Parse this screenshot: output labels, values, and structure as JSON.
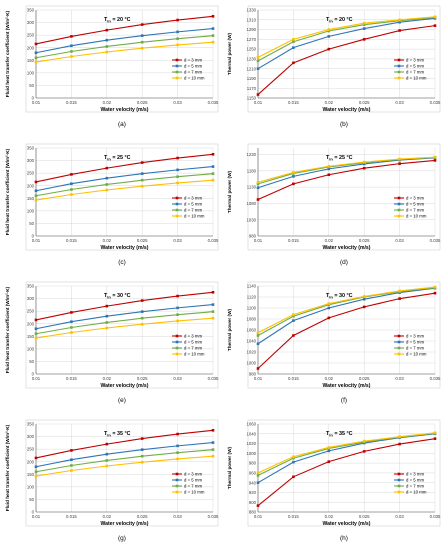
{
  "colors": {
    "d3": "#c00000",
    "d5": "#2e75b6",
    "d7": "#70ad47",
    "d10": "#ffc000",
    "grid": "#d9d9d9",
    "axis": "#595959"
  },
  "chart_data": [
    {
      "panel": "(a)",
      "type": "line",
      "annotation": "T_in = 20 °C",
      "xlabel": "Water velocity (m/s)",
      "ylabel": "Fluid heat transfer coefficient (W/m²·K)",
      "xlim": [
        0.01,
        0.035
      ],
      "ylim": [
        0,
        350
      ],
      "x_ticks": [
        "0.01",
        "0.015",
        "0.02",
        "0.025",
        "0.03",
        "0.035"
      ],
      "y_ticks": [
        "0",
        "50",
        "100",
        "150",
        "200",
        "250",
        "300",
        "350"
      ],
      "x": [
        0.01,
        0.015,
        0.02,
        0.025,
        0.03,
        0.035
      ],
      "series": [
        {
          "name": "d = 3 mm",
          "values": [
            215,
            245,
            270,
            292,
            310,
            325
          ]
        },
        {
          "name": "d = 5 mm",
          "values": [
            180,
            208,
            230,
            248,
            263,
            276
          ]
        },
        {
          "name": "d = 7 mm",
          "values": [
            160,
            185,
            205,
            222,
            236,
            248
          ]
        },
        {
          "name": "d = 10 mm",
          "values": [
            143,
            165,
            183,
            198,
            211,
            222
          ]
        }
      ],
      "legend": "right-middle",
      "grid": true
    },
    {
      "panel": "(b)",
      "type": "line",
      "annotation": "T_in = 20 °C",
      "xlabel": "Water velocity (m/s)",
      "ylabel": "Thermal power (W)",
      "xlim": [
        0.01,
        0.035
      ],
      "ylim": [
        1150,
        1330
      ],
      "x_ticks": [
        "0.01",
        "0.015",
        "0.02",
        "0.025",
        "0.03",
        "0.035"
      ],
      "y_ticks": [
        "1150",
        "1170",
        "1190",
        "1210",
        "1230",
        "1250",
        "1270",
        "1290",
        "1310",
        "1330"
      ],
      "x": [
        0.01,
        0.015,
        0.02,
        0.025,
        0.03,
        0.035
      ],
      "series": [
        {
          "name": "d = 3 mm",
          "values": [
            1157,
            1222,
            1250,
            1270,
            1288,
            1298
          ]
        },
        {
          "name": "d = 5 mm",
          "values": [
            1210,
            1253,
            1276,
            1292,
            1305,
            1313
          ]
        },
        {
          "name": "d = 7 mm",
          "values": [
            1226,
            1265,
            1287,
            1300,
            1308,
            1315
          ]
        },
        {
          "name": "d = 10 mm",
          "values": [
            1233,
            1270,
            1290,
            1303,
            1310,
            1316
          ]
        }
      ],
      "legend": "right-middle",
      "grid": true
    },
    {
      "panel": "(c)",
      "type": "line",
      "annotation": "T_in = 25 °C",
      "xlabel": "Water velocity (m/s)",
      "ylabel": "Fluid heat transfer coefficient (W/m²·K)",
      "xlim": [
        0.01,
        0.035
      ],
      "ylim": [
        0,
        350
      ],
      "x_ticks": [
        "0.01",
        "0.015",
        "0.02",
        "0.025",
        "0.03",
        "0.035"
      ],
      "y_ticks": [
        "0",
        "50",
        "100",
        "150",
        "200",
        "250",
        "300",
        "350"
      ],
      "x": [
        0.01,
        0.015,
        0.02,
        0.025,
        0.03,
        0.035
      ],
      "series": [
        {
          "name": "d = 3 mm",
          "values": [
            215,
            245,
            270,
            292,
            310,
            325
          ]
        },
        {
          "name": "d = 5 mm",
          "values": [
            180,
            208,
            230,
            248,
            263,
            276
          ]
        },
        {
          "name": "d = 7 mm",
          "values": [
            160,
            185,
            205,
            222,
            236,
            248
          ]
        },
        {
          "name": "d = 10 mm",
          "values": [
            143,
            165,
            183,
            198,
            211,
            222
          ]
        }
      ],
      "legend": "right-middle",
      "grid": true
    },
    {
      "panel": "(d)",
      "type": "line",
      "annotation": "T_in = 25 °C",
      "xlabel": "Water velocity (m/s)",
      "ylabel": "Thermal power (W)",
      "xlim": [
        0.01,
        0.035
      ],
      "ylim": [
        980,
        1250
      ],
      "x_ticks": [
        "0.01",
        "0.015",
        "0.02",
        "0.025",
        "0.03",
        "0.035"
      ],
      "y_ticks": [
        "980",
        "1030",
        "1080",
        "1130",
        "1180",
        "1230"
      ],
      "x": [
        0.01,
        0.015,
        0.02,
        0.025,
        0.03,
        0.035
      ],
      "series": [
        {
          "name": "d = 3 mm",
          "values": [
            1092,
            1140,
            1168,
            1188,
            1202,
            1212
          ]
        },
        {
          "name": "d = 5 mm",
          "values": [
            1128,
            1163,
            1186,
            1201,
            1213,
            1220
          ]
        },
        {
          "name": "d = 7 mm",
          "values": [
            1140,
            1172,
            1192,
            1205,
            1215,
            1221
          ]
        },
        {
          "name": "d = 10 mm",
          "values": [
            1145,
            1175,
            1194,
            1207,
            1216,
            1222
          ]
        }
      ],
      "legend": "right-middle",
      "grid": true
    },
    {
      "panel": "(e)",
      "type": "line",
      "annotation": "T_in = 30 °C",
      "xlabel": "Water velocity (m/s)",
      "ylabel": "Fluid heat transfer coefficient (W/m²·K)",
      "xlim": [
        0.01,
        0.035
      ],
      "ylim": [
        0,
        350
      ],
      "x_ticks": [
        "0.01",
        "0.015",
        "0.02",
        "0.025",
        "0.03",
        "0.035"
      ],
      "y_ticks": [
        "0",
        "50",
        "100",
        "150",
        "200",
        "250",
        "300",
        "350"
      ],
      "x": [
        0.01,
        0.015,
        0.02,
        0.025,
        0.03,
        0.035
      ],
      "series": [
        {
          "name": "d = 3 mm",
          "values": [
            215,
            245,
            270,
            292,
            310,
            325
          ]
        },
        {
          "name": "d = 5 mm",
          "values": [
            180,
            208,
            230,
            248,
            263,
            276
          ]
        },
        {
          "name": "d = 7 mm",
          "values": [
            160,
            185,
            205,
            222,
            236,
            248
          ]
        },
        {
          "name": "d = 10 mm",
          "values": [
            143,
            165,
            183,
            198,
            211,
            222
          ]
        }
      ],
      "legend": "right-middle",
      "grid": true
    },
    {
      "panel": "(f)",
      "type": "line",
      "annotation": "T_in = 30 °C",
      "xlabel": "Water velocity (m/s)",
      "ylabel": "Thermal power (W)",
      "xlim": [
        0.01,
        0.035
      ],
      "ylim": [
        980,
        1140
      ],
      "x_ticks": [
        "0.01",
        "0.015",
        "0.02",
        "0.025",
        "0.03",
        "0.035"
      ],
      "y_ticks": [
        "980",
        "1000",
        "1020",
        "1040",
        "1060",
        "1080",
        "1100",
        "1120",
        "1140"
      ],
      "x": [
        0.01,
        0.015,
        0.02,
        0.025,
        0.03,
        0.035
      ],
      "series": [
        {
          "name": "d = 3 mm",
          "values": [
            990,
            1050,
            1082,
            1102,
            1117,
            1127
          ]
        },
        {
          "name": "d = 5 mm",
          "values": [
            1035,
            1077,
            1100,
            1116,
            1128,
            1136
          ]
        },
        {
          "name": "d = 7 mm",
          "values": [
            1050,
            1085,
            1106,
            1120,
            1130,
            1137
          ]
        },
        {
          "name": "d = 10 mm",
          "values": [
            1055,
            1088,
            1108,
            1121,
            1131,
            1138
          ]
        }
      ],
      "legend": "right-middle",
      "grid": true
    },
    {
      "panel": "(g)",
      "type": "line",
      "annotation": "T_in = 35 °C",
      "xlabel": "Water velocity (m/s)",
      "ylabel": "Fluid heat transfer coefficient (W/m²·K)",
      "xlim": [
        0.01,
        0.035
      ],
      "ylim": [
        0,
        350
      ],
      "x_ticks": [
        "0.01",
        "0.015",
        "0.02",
        "0.025",
        "0.03",
        "0.035"
      ],
      "y_ticks": [
        "0",
        "50",
        "100",
        "150",
        "200",
        "250",
        "300",
        "350"
      ],
      "x": [
        0.01,
        0.015,
        0.02,
        0.025,
        0.03,
        0.035
      ],
      "series": [
        {
          "name": "d = 3 mm",
          "values": [
            215,
            245,
            270,
            292,
            310,
            325
          ]
        },
        {
          "name": "d = 5 mm",
          "values": [
            180,
            208,
            230,
            248,
            263,
            276
          ]
        },
        {
          "name": "d = 7 mm",
          "values": [
            160,
            185,
            205,
            222,
            236,
            248
          ]
        },
        {
          "name": "d = 10 mm",
          "values": [
            143,
            165,
            183,
            198,
            211,
            222
          ]
        }
      ],
      "legend": "right-middle",
      "grid": true
    },
    {
      "panel": "(h)",
      "type": "line",
      "annotation": "T_in = 35 °C",
      "xlabel": "Water velocity (m/s)",
      "ylabel": "Thermal power (W)",
      "xlim": [
        0.01,
        0.035
      ],
      "ylim": [
        880,
        1060
      ],
      "x_ticks": [
        "0.01",
        "0.015",
        "0.02",
        "0.025",
        "0.03",
        "0.035"
      ],
      "y_ticks": [
        "880",
        "900",
        "920",
        "940",
        "960",
        "980",
        "1000",
        "1020",
        "1040",
        "1060"
      ],
      "x": [
        0.01,
        0.015,
        0.02,
        0.025,
        0.03,
        0.035
      ],
      "series": [
        {
          "name": "d = 3 mm",
          "values": [
            893,
            952,
            983,
            1004,
            1019,
            1030
          ]
        },
        {
          "name": "d = 5 mm",
          "values": [
            940,
            982,
            1005,
            1021,
            1032,
            1040
          ]
        },
        {
          "name": "d = 7 mm",
          "values": [
            955,
            990,
            1010,
            1023,
            1033,
            1041
          ]
        },
        {
          "name": "d = 10 mm",
          "values": [
            960,
            993,
            1012,
            1025,
            1034,
            1042
          ]
        }
      ],
      "legend": "right-middle",
      "grid": true
    }
  ]
}
